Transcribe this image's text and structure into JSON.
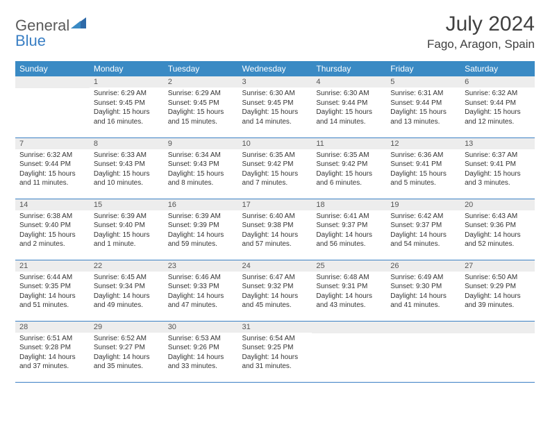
{
  "brand": {
    "part1": "General",
    "part2": "Blue"
  },
  "title": "July 2024",
  "location": "Fago, Aragon, Spain",
  "colors": {
    "header_bg": "#3a8ac4",
    "header_text": "#ffffff",
    "daynum_bg": "#ededed",
    "border": "#3a7fc4",
    "brand_gray": "#5a5a5a",
    "brand_blue": "#3a7fc4"
  },
  "weekdays": [
    "Sunday",
    "Monday",
    "Tuesday",
    "Wednesday",
    "Thursday",
    "Friday",
    "Saturday"
  ],
  "weeks": [
    [
      {
        "n": "",
        "sunrise": "",
        "sunset": "",
        "daylight": ""
      },
      {
        "n": "1",
        "sunrise": "Sunrise: 6:29 AM",
        "sunset": "Sunset: 9:45 PM",
        "daylight": "Daylight: 15 hours and 16 minutes."
      },
      {
        "n": "2",
        "sunrise": "Sunrise: 6:29 AM",
        "sunset": "Sunset: 9:45 PM",
        "daylight": "Daylight: 15 hours and 15 minutes."
      },
      {
        "n": "3",
        "sunrise": "Sunrise: 6:30 AM",
        "sunset": "Sunset: 9:45 PM",
        "daylight": "Daylight: 15 hours and 14 minutes."
      },
      {
        "n": "4",
        "sunrise": "Sunrise: 6:30 AM",
        "sunset": "Sunset: 9:44 PM",
        "daylight": "Daylight: 15 hours and 14 minutes."
      },
      {
        "n": "5",
        "sunrise": "Sunrise: 6:31 AM",
        "sunset": "Sunset: 9:44 PM",
        "daylight": "Daylight: 15 hours and 13 minutes."
      },
      {
        "n": "6",
        "sunrise": "Sunrise: 6:32 AM",
        "sunset": "Sunset: 9:44 PM",
        "daylight": "Daylight: 15 hours and 12 minutes."
      }
    ],
    [
      {
        "n": "7",
        "sunrise": "Sunrise: 6:32 AM",
        "sunset": "Sunset: 9:44 PM",
        "daylight": "Daylight: 15 hours and 11 minutes."
      },
      {
        "n": "8",
        "sunrise": "Sunrise: 6:33 AM",
        "sunset": "Sunset: 9:43 PM",
        "daylight": "Daylight: 15 hours and 10 minutes."
      },
      {
        "n": "9",
        "sunrise": "Sunrise: 6:34 AM",
        "sunset": "Sunset: 9:43 PM",
        "daylight": "Daylight: 15 hours and 8 minutes."
      },
      {
        "n": "10",
        "sunrise": "Sunrise: 6:35 AM",
        "sunset": "Sunset: 9:42 PM",
        "daylight": "Daylight: 15 hours and 7 minutes."
      },
      {
        "n": "11",
        "sunrise": "Sunrise: 6:35 AM",
        "sunset": "Sunset: 9:42 PM",
        "daylight": "Daylight: 15 hours and 6 minutes."
      },
      {
        "n": "12",
        "sunrise": "Sunrise: 6:36 AM",
        "sunset": "Sunset: 9:41 PM",
        "daylight": "Daylight: 15 hours and 5 minutes."
      },
      {
        "n": "13",
        "sunrise": "Sunrise: 6:37 AM",
        "sunset": "Sunset: 9:41 PM",
        "daylight": "Daylight: 15 hours and 3 minutes."
      }
    ],
    [
      {
        "n": "14",
        "sunrise": "Sunrise: 6:38 AM",
        "sunset": "Sunset: 9:40 PM",
        "daylight": "Daylight: 15 hours and 2 minutes."
      },
      {
        "n": "15",
        "sunrise": "Sunrise: 6:39 AM",
        "sunset": "Sunset: 9:40 PM",
        "daylight": "Daylight: 15 hours and 1 minute."
      },
      {
        "n": "16",
        "sunrise": "Sunrise: 6:39 AM",
        "sunset": "Sunset: 9:39 PM",
        "daylight": "Daylight: 14 hours and 59 minutes."
      },
      {
        "n": "17",
        "sunrise": "Sunrise: 6:40 AM",
        "sunset": "Sunset: 9:38 PM",
        "daylight": "Daylight: 14 hours and 57 minutes."
      },
      {
        "n": "18",
        "sunrise": "Sunrise: 6:41 AM",
        "sunset": "Sunset: 9:37 PM",
        "daylight": "Daylight: 14 hours and 56 minutes."
      },
      {
        "n": "19",
        "sunrise": "Sunrise: 6:42 AM",
        "sunset": "Sunset: 9:37 PM",
        "daylight": "Daylight: 14 hours and 54 minutes."
      },
      {
        "n": "20",
        "sunrise": "Sunrise: 6:43 AM",
        "sunset": "Sunset: 9:36 PM",
        "daylight": "Daylight: 14 hours and 52 minutes."
      }
    ],
    [
      {
        "n": "21",
        "sunrise": "Sunrise: 6:44 AM",
        "sunset": "Sunset: 9:35 PM",
        "daylight": "Daylight: 14 hours and 51 minutes."
      },
      {
        "n": "22",
        "sunrise": "Sunrise: 6:45 AM",
        "sunset": "Sunset: 9:34 PM",
        "daylight": "Daylight: 14 hours and 49 minutes."
      },
      {
        "n": "23",
        "sunrise": "Sunrise: 6:46 AM",
        "sunset": "Sunset: 9:33 PM",
        "daylight": "Daylight: 14 hours and 47 minutes."
      },
      {
        "n": "24",
        "sunrise": "Sunrise: 6:47 AM",
        "sunset": "Sunset: 9:32 PM",
        "daylight": "Daylight: 14 hours and 45 minutes."
      },
      {
        "n": "25",
        "sunrise": "Sunrise: 6:48 AM",
        "sunset": "Sunset: 9:31 PM",
        "daylight": "Daylight: 14 hours and 43 minutes."
      },
      {
        "n": "26",
        "sunrise": "Sunrise: 6:49 AM",
        "sunset": "Sunset: 9:30 PM",
        "daylight": "Daylight: 14 hours and 41 minutes."
      },
      {
        "n": "27",
        "sunrise": "Sunrise: 6:50 AM",
        "sunset": "Sunset: 9:29 PM",
        "daylight": "Daylight: 14 hours and 39 minutes."
      }
    ],
    [
      {
        "n": "28",
        "sunrise": "Sunrise: 6:51 AM",
        "sunset": "Sunset: 9:28 PM",
        "daylight": "Daylight: 14 hours and 37 minutes."
      },
      {
        "n": "29",
        "sunrise": "Sunrise: 6:52 AM",
        "sunset": "Sunset: 9:27 PM",
        "daylight": "Daylight: 14 hours and 35 minutes."
      },
      {
        "n": "30",
        "sunrise": "Sunrise: 6:53 AM",
        "sunset": "Sunset: 9:26 PM",
        "daylight": "Daylight: 14 hours and 33 minutes."
      },
      {
        "n": "31",
        "sunrise": "Sunrise: 6:54 AM",
        "sunset": "Sunset: 9:25 PM",
        "daylight": "Daylight: 14 hours and 31 minutes."
      },
      {
        "n": "",
        "sunrise": "",
        "sunset": "",
        "daylight": ""
      },
      {
        "n": "",
        "sunrise": "",
        "sunset": "",
        "daylight": ""
      },
      {
        "n": "",
        "sunrise": "",
        "sunset": "",
        "daylight": ""
      }
    ]
  ]
}
